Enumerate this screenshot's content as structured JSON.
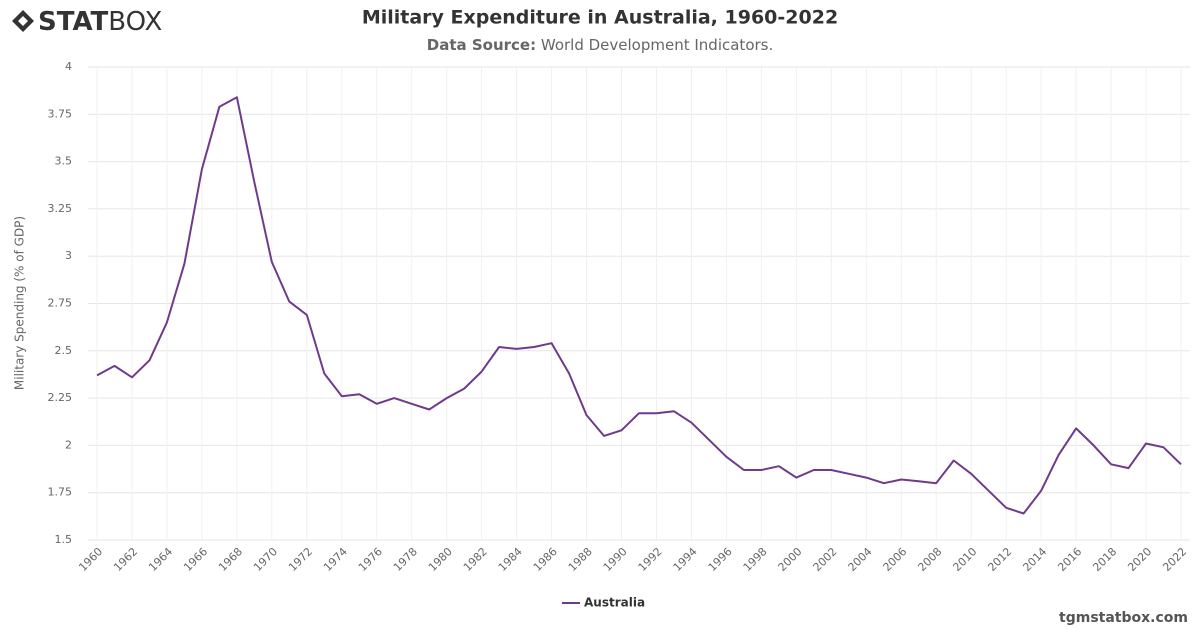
{
  "branding": {
    "logo_bold": "STAT",
    "logo_light": "BOX",
    "website": "tgmstatbox.com"
  },
  "chart_data": {
    "type": "line",
    "title": "Military Expenditure in Australia, 1960-2022",
    "subtitle_label": "Data Source:",
    "subtitle": "World Development Indicators.",
    "y_label": "Military Spending (% of GDP)",
    "x": [
      1960,
      1961,
      1962,
      1963,
      1964,
      1965,
      1966,
      1967,
      1968,
      1969,
      1970,
      1971,
      1972,
      1973,
      1974,
      1975,
      1976,
      1977,
      1978,
      1979,
      1980,
      1981,
      1982,
      1983,
      1984,
      1985,
      1986,
      1987,
      1988,
      1989,
      1990,
      1991,
      1992,
      1993,
      1994,
      1995,
      1996,
      1997,
      1998,
      1999,
      2000,
      2001,
      2002,
      2003,
      2004,
      2005,
      2006,
      2007,
      2008,
      2009,
      2010,
      2011,
      2012,
      2013,
      2014,
      2015,
      2016,
      2017,
      2018,
      2019,
      2020,
      2021,
      2022
    ],
    "series": [
      {
        "name": "Australia",
        "color": "#6f3a8a",
        "values": [
          2.37,
          2.42,
          2.36,
          2.45,
          2.65,
          2.96,
          3.46,
          3.79,
          3.84,
          3.39,
          2.97,
          2.76,
          2.69,
          2.38,
          2.26,
          2.27,
          2.22,
          2.25,
          2.22,
          2.19,
          2.25,
          2.3,
          2.39,
          2.52,
          2.51,
          2.52,
          2.54,
          2.38,
          2.16,
          2.05,
          2.08,
          2.17,
          2.17,
          2.18,
          2.12,
          2.03,
          1.94,
          1.87,
          1.87,
          1.89,
          1.83,
          1.87,
          1.87,
          1.85,
          1.83,
          1.8,
          1.82,
          1.81,
          1.8,
          1.92,
          1.85,
          1.76,
          1.67,
          1.64,
          1.76,
          1.95,
          2.09,
          2.0,
          1.9,
          1.88,
          2.01,
          1.99,
          1.9
        ]
      }
    ],
    "xlim": [
      1960,
      2022
    ],
    "xticks": [
      1960,
      1962,
      1964,
      1966,
      1968,
      1970,
      1972,
      1974,
      1976,
      1978,
      1980,
      1982,
      1984,
      1986,
      1988,
      1990,
      1992,
      1994,
      1996,
      1998,
      2000,
      2002,
      2004,
      2006,
      2008,
      2010,
      2012,
      2014,
      2016,
      2018,
      2020,
      2022
    ],
    "ylim": [
      1.5,
      4
    ],
    "yticks": [
      1.5,
      1.75,
      2,
      2.25,
      2.5,
      2.75,
      3,
      3.25,
      3.5,
      3.75,
      4
    ],
    "grid": true,
    "legend": "bottom"
  }
}
